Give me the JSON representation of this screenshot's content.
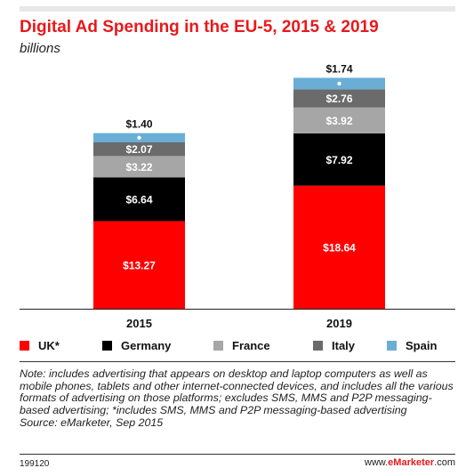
{
  "header": {
    "title": "Digital Ad Spending in the EU-5, 2015 & 2019",
    "subtitle": "billions"
  },
  "chart_data": {
    "type": "bar",
    "stacked": true,
    "categories": [
      "2015",
      "2019"
    ],
    "series": [
      {
        "name": "UK*",
        "values": [
          13.27,
          18.64
        ],
        "labels": [
          "$13.27",
          "$18.64"
        ],
        "color": "#ff0000",
        "label_color": "#ffffff"
      },
      {
        "name": "Germany",
        "values": [
          6.64,
          7.92
        ],
        "labels": [
          "$6.64",
          "$7.92"
        ],
        "color": "#000000",
        "label_color": "#ffffff"
      },
      {
        "name": "France",
        "values": [
          3.22,
          3.92
        ],
        "labels": [
          "$3.22",
          "$3.92"
        ],
        "color": "#a6a6a6",
        "label_color": "#ffffff"
      },
      {
        "name": "Italy",
        "values": [
          2.07,
          2.76
        ],
        "labels": [
          "$2.07",
          "$2.76"
        ],
        "color": "#6b6b6b",
        "label_color": "#ffffff"
      },
      {
        "name": "Spain",
        "values": [
          1.4,
          1.74
        ],
        "labels": [
          "$1.40",
          "$1.74"
        ],
        "color": "#6aaed6",
        "label_color": "#ffffff"
      }
    ],
    "ylim": [
      0,
      35
    ],
    "grid": false,
    "legend_position": "bottom"
  },
  "note": "Note: includes advertising that appears on desktop and laptop computers as well as mobile phones, tablets and other internet-connected devices, and includes all the various formats of advertising on those platforms; excludes SMS, MMS and P2P messaging-based advertising; *includes SMS, MMS and P2P messaging-based advertising",
  "source": "Source: eMarketer, Sep 2015",
  "footer": {
    "chart_id": "199120",
    "brand_prefix": "www.",
    "brand_name": "eMarketer",
    "brand_suffix": ".com"
  }
}
